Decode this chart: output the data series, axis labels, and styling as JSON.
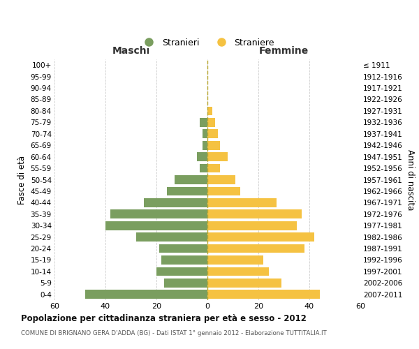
{
  "age_groups": [
    "0-4",
    "5-9",
    "10-14",
    "15-19",
    "20-24",
    "25-29",
    "30-34",
    "35-39",
    "40-44",
    "45-49",
    "50-54",
    "55-59",
    "60-64",
    "65-69",
    "70-74",
    "75-79",
    "80-84",
    "85-89",
    "90-94",
    "95-99",
    "100+"
  ],
  "birth_years": [
    "2007-2011",
    "2002-2006",
    "1997-2001",
    "1992-1996",
    "1987-1991",
    "1982-1986",
    "1977-1981",
    "1972-1976",
    "1967-1971",
    "1962-1966",
    "1957-1961",
    "1952-1956",
    "1947-1951",
    "1942-1946",
    "1937-1941",
    "1932-1936",
    "1927-1931",
    "1922-1926",
    "1917-1921",
    "1912-1916",
    "≤ 1911"
  ],
  "maschi": [
    48,
    17,
    20,
    18,
    19,
    28,
    40,
    38,
    25,
    16,
    13,
    3,
    4,
    2,
    2,
    3,
    0,
    0,
    0,
    0,
    0
  ],
  "femmine": [
    44,
    29,
    24,
    22,
    38,
    42,
    35,
    37,
    27,
    13,
    11,
    5,
    8,
    5,
    4,
    3,
    2,
    0,
    0,
    0,
    0
  ],
  "color_maschi": "#7a9e5f",
  "color_femmine": "#f5c242",
  "title": "Popolazione per cittadinanza straniera per età e sesso - 2012",
  "subtitle": "COMUNE DI BRIGNANO GERA D'ADDA (BG) - Dati ISTAT 1° gennaio 2012 - Elaborazione TUTTITALIA.IT",
  "ylabel_left": "Fasce di età",
  "ylabel_right": "Anni di nascita",
  "xlabel_left": "Maschi",
  "xlabel_right": "Femmine",
  "legend_maschi": "Stranieri",
  "legend_femmine": "Straniere",
  "xlim": 60,
  "background_color": "#ffffff",
  "grid_color": "#cccccc",
  "dashed_line_color": "#b8a832"
}
